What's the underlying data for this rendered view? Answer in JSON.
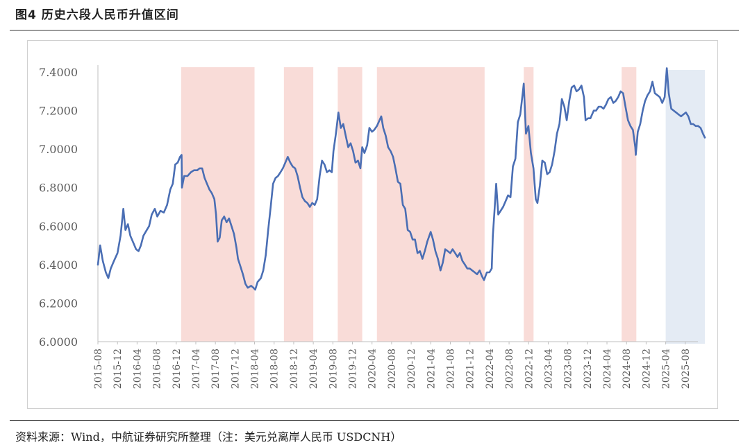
{
  "figure": {
    "title": "图4  历史六段人民币升值区间",
    "source": "资料来源：Wind，中航证券研究所整理（注：美元兑离岸人民币 USDCNH）"
  },
  "colors": {
    "line": "#4a6eb4",
    "appreciation_band": "#f9dcd8",
    "latest_band": "#e4ebf4",
    "axis": "#bfbfbf",
    "tick_text": "#595959"
  },
  "chart_data": {
    "type": "line",
    "title": "",
    "xlabel": "",
    "ylabel": "",
    "ylim": [
      6.0,
      7.4
    ],
    "yticks": [
      "6.0000",
      "6.2000",
      "6.4000",
      "6.6000",
      "6.8000",
      "7.0000",
      "7.2000",
      "7.4000"
    ],
    "xlim": [
      "2015-08",
      "2025-12"
    ],
    "xticks": [
      "2015-08",
      "2015-12",
      "2016-04",
      "2016-08",
      "2016-12",
      "2017-04",
      "2017-08",
      "2017-12",
      "2018-04",
      "2018-08",
      "2018-12",
      "2019-04",
      "2019-08",
      "2019-12",
      "2020-04",
      "2020-08",
      "2020-12",
      "2021-04",
      "2021-08",
      "2021-12",
      "2022-04",
      "2022-08",
      "2022-12",
      "2023-04",
      "2023-08",
      "2023-12",
      "2024-04",
      "2024-08",
      "2024-12",
      "2025-04",
      "2025-08"
    ],
    "appreciation_periods": [
      {
        "start": "2017-01",
        "end": "2018-04"
      },
      {
        "start": "2018-10",
        "end": "2019-04"
      },
      {
        "start": "2019-09",
        "end": "2020-02"
      },
      {
        "start": "2020-05",
        "end": "2022-03"
      },
      {
        "start": "2022-11",
        "end": "2023-01"
      },
      {
        "start": "2024-07",
        "end": "2024-10"
      }
    ],
    "latest_period": {
      "start": "2025-04",
      "end": "2025-12"
    },
    "series": [
      {
        "values": [
          [
            "2015-08-01",
            6.4
          ],
          [
            "2015-08-15",
            6.5
          ],
          [
            "2015-09-01",
            6.42
          ],
          [
            "2015-09-20",
            6.36
          ],
          [
            "2015-10-05",
            6.33
          ],
          [
            "2015-10-20",
            6.38
          ],
          [
            "2015-11-10",
            6.42
          ],
          [
            "2015-12-01",
            6.46
          ],
          [
            "2015-12-20",
            6.55
          ],
          [
            "2016-01-07",
            6.69
          ],
          [
            "2016-01-20",
            6.58
          ],
          [
            "2016-02-05",
            6.61
          ],
          [
            "2016-02-20",
            6.55
          ],
          [
            "2016-03-10",
            6.51
          ],
          [
            "2016-03-25",
            6.48
          ],
          [
            "2016-04-10",
            6.47
          ],
          [
            "2016-04-25",
            6.5
          ],
          [
            "2016-05-10",
            6.55
          ],
          [
            "2016-05-31",
            6.58
          ],
          [
            "2016-06-15",
            6.6
          ],
          [
            "2016-07-01",
            6.66
          ],
          [
            "2016-07-20",
            6.69
          ],
          [
            "2016-08-05",
            6.65
          ],
          [
            "2016-08-25",
            6.68
          ],
          [
            "2016-09-15",
            6.67
          ],
          [
            "2016-10-05",
            6.71
          ],
          [
            "2016-10-25",
            6.79
          ],
          [
            "2016-11-10",
            6.82
          ],
          [
            "2016-11-25",
            6.92
          ],
          [
            "2016-12-10",
            6.93
          ],
          [
            "2016-12-25",
            6.96
          ],
          [
            "2017-01-04",
            6.97
          ],
          [
            "2017-01-06",
            6.8
          ],
          [
            "2017-01-20",
            6.86
          ],
          [
            "2017-02-10",
            6.86
          ],
          [
            "2017-03-01",
            6.88
          ],
          [
            "2017-03-20",
            6.89
          ],
          [
            "2017-04-10",
            6.89
          ],
          [
            "2017-04-25",
            6.9
          ],
          [
            "2017-05-10",
            6.9
          ],
          [
            "2017-05-25",
            6.85
          ],
          [
            "2017-06-10",
            6.82
          ],
          [
            "2017-06-25",
            6.79
          ],
          [
            "2017-07-10",
            6.77
          ],
          [
            "2017-07-25",
            6.74
          ],
          [
            "2017-08-05",
            6.66
          ],
          [
            "2017-08-15",
            6.52
          ],
          [
            "2017-08-28",
            6.54
          ],
          [
            "2017-09-10",
            6.63
          ],
          [
            "2017-09-25",
            6.65
          ],
          [
            "2017-10-10",
            6.62
          ],
          [
            "2017-10-25",
            6.64
          ],
          [
            "2017-11-10",
            6.6
          ],
          [
            "2017-11-25",
            6.56
          ],
          [
            "2017-12-10",
            6.49
          ],
          [
            "2017-12-20",
            6.43
          ],
          [
            "2018-01-05",
            6.39
          ],
          [
            "2018-01-20",
            6.35
          ],
          [
            "2018-02-05",
            6.3
          ],
          [
            "2018-02-20",
            6.28
          ],
          [
            "2018-03-10",
            6.29
          ],
          [
            "2018-03-25",
            6.28
          ],
          [
            "2018-04-05",
            6.27
          ],
          [
            "2018-04-20",
            6.31
          ],
          [
            "2018-05-10",
            6.33
          ],
          [
            "2018-05-25",
            6.37
          ],
          [
            "2018-06-10",
            6.45
          ],
          [
            "2018-06-25",
            6.58
          ],
          [
            "2018-07-10",
            6.7
          ],
          [
            "2018-07-25",
            6.82
          ],
          [
            "2018-08-10",
            6.85
          ],
          [
            "2018-08-25",
            6.86
          ],
          [
            "2018-09-10",
            6.88
          ],
          [
            "2018-09-25",
            6.9
          ],
          [
            "2018-10-10",
            6.93
          ],
          [
            "2018-10-25",
            6.96
          ],
          [
            "2018-11-10",
            6.93
          ],
          [
            "2018-11-25",
            6.91
          ],
          [
            "2018-12-10",
            6.9
          ],
          [
            "2018-12-25",
            6.86
          ],
          [
            "2019-01-10",
            6.8
          ],
          [
            "2019-01-25",
            6.75
          ],
          [
            "2019-02-10",
            6.73
          ],
          [
            "2019-02-25",
            6.72
          ],
          [
            "2019-03-10",
            6.7
          ],
          [
            "2019-03-25",
            6.72
          ],
          [
            "2019-04-10",
            6.71
          ],
          [
            "2019-04-25",
            6.74
          ],
          [
            "2019-05-10",
            6.86
          ],
          [
            "2019-05-25",
            6.94
          ],
          [
            "2019-06-10",
            6.92
          ],
          [
            "2019-06-25",
            6.88
          ],
          [
            "2019-07-10",
            6.89
          ],
          [
            "2019-07-25",
            6.88
          ],
          [
            "2019-08-05",
            6.99
          ],
          [
            "2019-08-20",
            7.08
          ],
          [
            "2019-09-05",
            7.19
          ],
          [
            "2019-09-20",
            7.11
          ],
          [
            "2019-10-05",
            7.13
          ],
          [
            "2019-10-20",
            7.07
          ],
          [
            "2019-11-05",
            7.01
          ],
          [
            "2019-11-20",
            7.03
          ],
          [
            "2019-12-05",
            6.99
          ],
          [
            "2019-12-20",
            6.93
          ],
          [
            "2020-01-05",
            6.94
          ],
          [
            "2020-01-20",
            6.9
          ],
          [
            "2020-02-01",
            7.01
          ],
          [
            "2020-02-15",
            6.98
          ],
          [
            "2020-03-01",
            7.02
          ],
          [
            "2020-03-15",
            7.11
          ],
          [
            "2020-04-01",
            7.09
          ],
          [
            "2020-04-15",
            7.1
          ],
          [
            "2020-05-01",
            7.12
          ],
          [
            "2020-05-28",
            7.17
          ],
          [
            "2020-06-10",
            7.11
          ],
          [
            "2020-06-25",
            7.07
          ],
          [
            "2020-07-10",
            7.01
          ],
          [
            "2020-07-25",
            6.99
          ],
          [
            "2020-08-10",
            6.96
          ],
          [
            "2020-08-25",
            6.9
          ],
          [
            "2020-09-10",
            6.83
          ],
          [
            "2020-09-25",
            6.82
          ],
          [
            "2020-10-10",
            6.71
          ],
          [
            "2020-10-25",
            6.69
          ],
          [
            "2020-11-10",
            6.58
          ],
          [
            "2020-11-25",
            6.57
          ],
          [
            "2020-12-10",
            6.53
          ],
          [
            "2020-12-25",
            6.53
          ],
          [
            "2021-01-10",
            6.46
          ],
          [
            "2021-01-25",
            6.47
          ],
          [
            "2021-02-10",
            6.43
          ],
          [
            "2021-02-25",
            6.47
          ],
          [
            "2021-03-10",
            6.52
          ],
          [
            "2021-03-31",
            6.57
          ],
          [
            "2021-04-15",
            6.53
          ],
          [
            "2021-04-30",
            6.47
          ],
          [
            "2021-05-15",
            6.43
          ],
          [
            "2021-05-31",
            6.37
          ],
          [
            "2021-06-15",
            6.41
          ],
          [
            "2021-06-30",
            6.48
          ],
          [
            "2021-07-15",
            6.47
          ],
          [
            "2021-07-31",
            6.46
          ],
          [
            "2021-08-15",
            6.48
          ],
          [
            "2021-08-31",
            6.46
          ],
          [
            "2021-09-15",
            6.44
          ],
          [
            "2021-09-30",
            6.46
          ],
          [
            "2021-10-15",
            6.42
          ],
          [
            "2021-10-31",
            6.4
          ],
          [
            "2021-11-15",
            6.38
          ],
          [
            "2021-11-30",
            6.38
          ],
          [
            "2021-12-15",
            6.37
          ],
          [
            "2021-12-31",
            6.36
          ],
          [
            "2022-01-15",
            6.35
          ],
          [
            "2022-01-31",
            6.37
          ],
          [
            "2022-02-15",
            6.34
          ],
          [
            "2022-02-28",
            6.32
          ],
          [
            "2022-03-15",
            6.36
          ],
          [
            "2022-03-31",
            6.36
          ],
          [
            "2022-04-15",
            6.38
          ],
          [
            "2022-04-22",
            6.55
          ],
          [
            "2022-05-01",
            6.67
          ],
          [
            "2022-05-12",
            6.82
          ],
          [
            "2022-05-25",
            6.66
          ],
          [
            "2022-06-10",
            6.68
          ],
          [
            "2022-06-25",
            6.7
          ],
          [
            "2022-07-10",
            6.73
          ],
          [
            "2022-07-25",
            6.76
          ],
          [
            "2022-08-10",
            6.75
          ],
          [
            "2022-08-25",
            6.91
          ],
          [
            "2022-09-10",
            6.95
          ],
          [
            "2022-09-25",
            7.14
          ],
          [
            "2022-10-10",
            7.18
          ],
          [
            "2022-10-25",
            7.29
          ],
          [
            "2022-11-01",
            7.34
          ],
          [
            "2022-11-15",
            7.08
          ],
          [
            "2022-11-30",
            7.12
          ],
          [
            "2022-12-15",
            6.98
          ],
          [
            "2022-12-31",
            6.9
          ],
          [
            "2023-01-15",
            6.74
          ],
          [
            "2023-01-25",
            6.72
          ],
          [
            "2023-02-10",
            6.81
          ],
          [
            "2023-02-25",
            6.94
          ],
          [
            "2023-03-10",
            6.93
          ],
          [
            "2023-03-25",
            6.87
          ],
          [
            "2023-04-10",
            6.88
          ],
          [
            "2023-04-25",
            6.92
          ],
          [
            "2023-05-10",
            6.99
          ],
          [
            "2023-05-25",
            7.08
          ],
          [
            "2023-06-10",
            7.13
          ],
          [
            "2023-06-25",
            7.26
          ],
          [
            "2023-07-10",
            7.22
          ],
          [
            "2023-07-25",
            7.15
          ],
          [
            "2023-08-10",
            7.25
          ],
          [
            "2023-08-25",
            7.32
          ],
          [
            "2023-09-10",
            7.33
          ],
          [
            "2023-09-25",
            7.3
          ],
          [
            "2023-10-10",
            7.31
          ],
          [
            "2023-10-25",
            7.33
          ],
          [
            "2023-11-10",
            7.27
          ],
          [
            "2023-11-20",
            7.15
          ],
          [
            "2023-12-05",
            7.16
          ],
          [
            "2023-12-20",
            7.16
          ],
          [
            "2024-01-10",
            7.2
          ],
          [
            "2024-01-25",
            7.2
          ],
          [
            "2024-02-10",
            7.22
          ],
          [
            "2024-02-25",
            7.22
          ],
          [
            "2024-03-10",
            7.21
          ],
          [
            "2024-03-25",
            7.23
          ],
          [
            "2024-04-10",
            7.26
          ],
          [
            "2024-04-25",
            7.27
          ],
          [
            "2024-05-10",
            7.24
          ],
          [
            "2024-05-25",
            7.25
          ],
          [
            "2024-06-10",
            7.27
          ],
          [
            "2024-06-25",
            7.3
          ],
          [
            "2024-07-10",
            7.29
          ],
          [
            "2024-07-25",
            7.22
          ],
          [
            "2024-08-10",
            7.15
          ],
          [
            "2024-08-25",
            7.12
          ],
          [
            "2024-09-10",
            7.1
          ],
          [
            "2024-09-25",
            7.01
          ],
          [
            "2024-09-28",
            6.97
          ],
          [
            "2024-10-10",
            7.09
          ],
          [
            "2024-10-25",
            7.13
          ],
          [
            "2024-11-10",
            7.2
          ],
          [
            "2024-11-25",
            7.25
          ],
          [
            "2024-12-10",
            7.28
          ],
          [
            "2024-12-25",
            7.3
          ],
          [
            "2025-01-10",
            7.35
          ],
          [
            "2025-01-25",
            7.29
          ],
          [
            "2025-02-10",
            7.28
          ],
          [
            "2025-02-25",
            7.27
          ],
          [
            "2025-03-10",
            7.24
          ],
          [
            "2025-03-25",
            7.27
          ],
          [
            "2025-04-08",
            7.42
          ],
          [
            "2025-04-20",
            7.29
          ],
          [
            "2025-05-05",
            7.21
          ],
          [
            "2025-05-20",
            7.2
          ],
          [
            "2025-06-05",
            7.19
          ],
          [
            "2025-06-20",
            7.18
          ],
          [
            "2025-07-05",
            7.17
          ],
          [
            "2025-07-20",
            7.18
          ],
          [
            "2025-08-05",
            7.19
          ],
          [
            "2025-08-20",
            7.17
          ],
          [
            "2025-09-05",
            7.13
          ],
          [
            "2025-09-20",
            7.13
          ],
          [
            "2025-10-05",
            7.12
          ],
          [
            "2025-10-20",
            7.12
          ],
          [
            "2025-11-05",
            7.11
          ],
          [
            "2025-11-20",
            7.08
          ],
          [
            "2025-12-01",
            7.06
          ]
        ]
      }
    ]
  }
}
